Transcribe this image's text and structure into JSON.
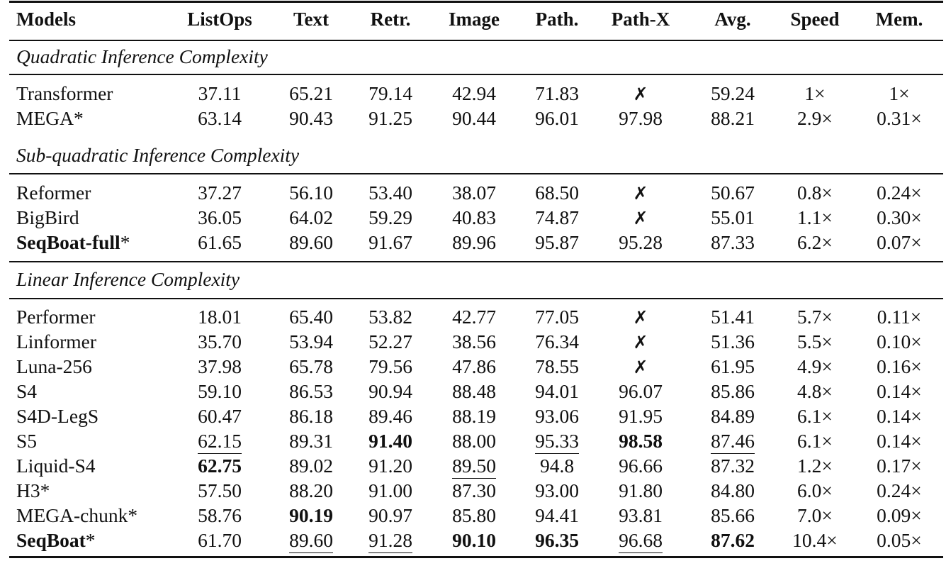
{
  "table": {
    "headers": [
      "Models",
      "ListOps",
      "Text",
      "Retr.",
      "Image",
      "Path.",
      "Path-X",
      "Avg.",
      "Speed",
      "Mem."
    ],
    "sections": [
      {
        "title": "Quadratic Inference Complexity",
        "rows": [
          {
            "model": "Transformer",
            "model_bold": false,
            "suffix": "",
            "cells": [
              "37.11",
              "65.21",
              "79.14",
              "42.94",
              "71.83",
              "✗",
              "59.24",
              "1×",
              "1×"
            ]
          },
          {
            "model": "MEGA",
            "model_bold": false,
            "suffix": "*",
            "cells": [
              "63.14",
              "90.43",
              "91.25",
              "90.44",
              "96.01",
              "97.98",
              "88.21",
              "2.9×",
              "0.31×"
            ]
          }
        ]
      },
      {
        "title": "Sub-quadratic Inference Complexity",
        "rows": [
          {
            "model": "Reformer",
            "model_bold": false,
            "suffix": "",
            "cells": [
              "37.27",
              "56.10",
              "53.40",
              "38.07",
              "68.50",
              "✗",
              "50.67",
              "0.8×",
              "0.24×"
            ]
          },
          {
            "model": "BigBird",
            "model_bold": false,
            "suffix": "",
            "cells": [
              "36.05",
              "64.02",
              "59.29",
              "40.83",
              "74.87",
              "✗",
              "55.01",
              "1.1×",
              "0.30×"
            ]
          },
          {
            "model": "SeqBoat-full",
            "model_bold": true,
            "suffix": "*",
            "cells": [
              "61.65",
              "89.60",
              "91.67",
              "89.96",
              "95.87",
              "95.28",
              "87.33",
              "6.2×",
              "0.07×"
            ]
          }
        ]
      },
      {
        "title": "Linear Inference Complexity",
        "rows": [
          {
            "model": "Performer",
            "model_bold": false,
            "suffix": "",
            "cells": [
              "18.01",
              "65.40",
              "53.82",
              "42.77",
              "77.05",
              "✗",
              "51.41",
              "5.7×",
              "0.11×"
            ]
          },
          {
            "model": "Linformer",
            "model_bold": false,
            "suffix": "",
            "cells": [
              "35.70",
              "53.94",
              "52.27",
              "38.56",
              "76.34",
              "✗",
              "51.36",
              "5.5×",
              "0.10×"
            ]
          },
          {
            "model": "Luna-256",
            "model_bold": false,
            "suffix": "",
            "cells": [
              "37.98",
              "65.78",
              "79.56",
              "47.86",
              "78.55",
              "✗",
              "61.95",
              "4.9×",
              "0.16×"
            ]
          },
          {
            "model": "S4",
            "model_bold": false,
            "suffix": "",
            "cells": [
              "59.10",
              "86.53",
              "90.94",
              "88.48",
              "94.01",
              "96.07",
              "85.86",
              "4.8×",
              "0.14×"
            ]
          },
          {
            "model": "S4D-LegS",
            "model_bold": false,
            "suffix": "",
            "cells": [
              "60.47",
              "86.18",
              "89.46",
              "88.19",
              "93.06",
              "91.95",
              "84.89",
              "6.1×",
              "0.14×"
            ]
          },
          {
            "model": "S5",
            "model_bold": false,
            "suffix": "",
            "cells": [
              "62.15",
              "89.31",
              "91.40",
              "88.00",
              "95.33",
              "98.58",
              "87.46",
              "6.1×",
              "0.14×"
            ]
          },
          {
            "model": "Liquid-S4",
            "model_bold": false,
            "suffix": "",
            "cells": [
              "62.75",
              "89.02",
              "91.20",
              "89.50",
              "94.8",
              "96.66",
              "87.32",
              "1.2×",
              "0.17×"
            ]
          },
          {
            "model": "H3",
            "model_bold": false,
            "suffix": "*",
            "cells": [
              "57.50",
              "88.20",
              "91.00",
              "87.30",
              "93.00",
              "91.80",
              "84.80",
              "6.0×",
              "0.24×"
            ]
          },
          {
            "model": "MEGA-chunk",
            "model_bold": false,
            "suffix": "*",
            "cells": [
              "58.76",
              "90.19",
              "90.97",
              "85.80",
              "94.41",
              "93.81",
              "85.66",
              "7.0×",
              "0.09×"
            ]
          },
          {
            "model": "SeqBoat",
            "model_bold": true,
            "suffix": "*",
            "cells": [
              "61.70",
              "89.60",
              "91.28",
              "90.10",
              "96.35",
              "96.68",
              "87.62",
              "10.4×",
              "0.05×"
            ]
          }
        ]
      }
    ],
    "bold_cells": [
      {
        "section": 2,
        "row": 5,
        "col": 2
      },
      {
        "section": 2,
        "row": 5,
        "col": 5
      },
      {
        "section": 2,
        "row": 6,
        "col": 0
      },
      {
        "section": 2,
        "row": 8,
        "col": 1
      },
      {
        "section": 2,
        "row": 9,
        "col": 3
      },
      {
        "section": 2,
        "row": 9,
        "col": 4
      },
      {
        "section": 2,
        "row": 9,
        "col": 6
      }
    ],
    "underlined_cells": [
      {
        "section": 2,
        "row": 5,
        "col": 0
      },
      {
        "section": 2,
        "row": 5,
        "col": 4
      },
      {
        "section": 2,
        "row": 5,
        "col": 6
      },
      {
        "section": 2,
        "row": 6,
        "col": 3
      },
      {
        "section": 2,
        "row": 9,
        "col": 1
      },
      {
        "section": 2,
        "row": 9,
        "col": 2
      },
      {
        "section": 2,
        "row": 9,
        "col": 5
      }
    ]
  }
}
